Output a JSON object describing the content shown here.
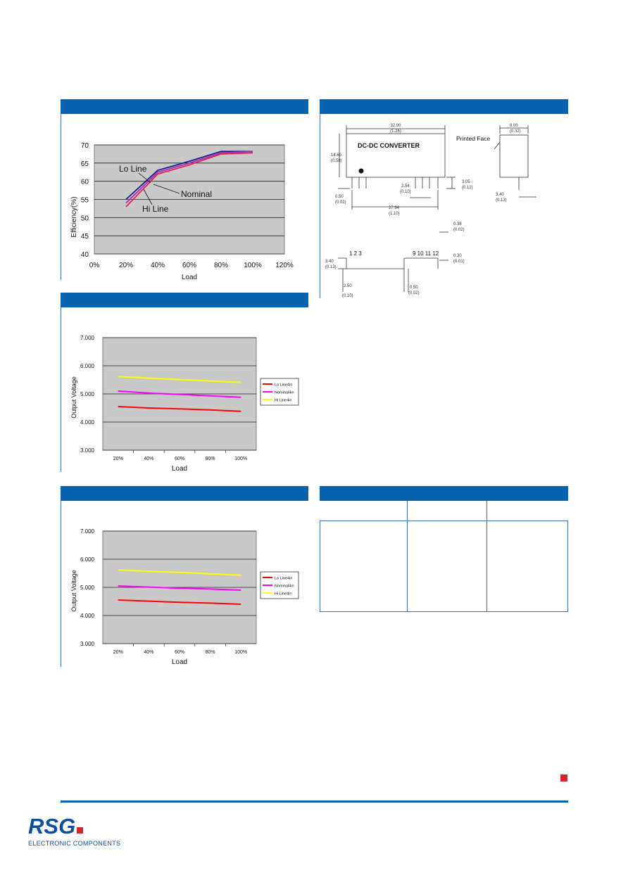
{
  "chart_data": [
    {
      "type": "line",
      "title": "",
      "xlabel": "Load",
      "ylabel": "Efficiency(%)",
      "x_ticks": [
        "0%",
        "20%",
        "40%",
        "60%",
        "80%",
        "100%",
        "120%"
      ],
      "y_ticks": [
        "40",
        "45",
        "50",
        "55",
        "60",
        "65",
        "70"
      ],
      "xlim": [
        0,
        120
      ],
      "ylim": [
        40,
        70
      ],
      "grid": true,
      "annotations": [
        "Lo Line",
        "Nominal",
        "Hi Line"
      ],
      "x": [
        20,
        40,
        60,
        80,
        100
      ],
      "series": [
        {
          "name": "Lo Line",
          "color": "#1a1a8c",
          "values": [
            55,
            63,
            65.5,
            68.2,
            68.2
          ]
        },
        {
          "name": "Nominal",
          "color": "#9b30c0",
          "values": [
            54,
            62.5,
            65,
            67.8,
            68.2
          ]
        },
        {
          "name": "Hi Line",
          "color": "#e8204a",
          "values": [
            53,
            62,
            64.5,
            67.5,
            67.8
          ]
        }
      ]
    },
    {
      "type": "line",
      "title": "",
      "xlabel": "Load",
      "ylabel": "Output Voltage",
      "categories": [
        "20%",
        "40%",
        "60%",
        "80%",
        "100%"
      ],
      "y_ticks": [
        "3.000",
        "4.000",
        "5.000",
        "6.000",
        "7.000"
      ],
      "ylim": [
        3,
        7
      ],
      "grid": true,
      "legend": "right",
      "series": [
        {
          "name": "Lo Line4in",
          "color": "#ff0000",
          "values": [
            4.55,
            4.5,
            4.47,
            4.43,
            4.38
          ]
        },
        {
          "name": "Nominal4in",
          "color": "#ff00ff",
          "values": [
            5.1,
            5.03,
            4.98,
            4.93,
            4.88
          ]
        },
        {
          "name": "Hi Line4in",
          "color": "#ffff00",
          "values": [
            5.62,
            5.56,
            5.51,
            5.46,
            5.41
          ]
        }
      ]
    },
    {
      "type": "line",
      "title": "",
      "xlabel": "Load",
      "ylabel": "Output Voltage",
      "categories": [
        "20%",
        "40%",
        "60%",
        "80%",
        "100%"
      ],
      "y_ticks": [
        "3.000",
        "4.000",
        "5.000",
        "6.000",
        "7.000"
      ],
      "ylim": [
        3,
        7
      ],
      "grid": true,
      "legend": "right",
      "series": [
        {
          "name": "Lo Line4in",
          "color": "#ff0000",
          "values": [
            4.55,
            4.51,
            4.47,
            4.44,
            4.4
          ]
        },
        {
          "name": "Nominal4in",
          "color": "#ff00ff",
          "values": [
            5.05,
            5.01,
            4.97,
            4.94,
            4.9
          ]
        },
        {
          "name": "Hi Line4in",
          "color": "#ffff00",
          "values": [
            5.62,
            5.57,
            5.53,
            5.48,
            5.43
          ]
        }
      ]
    }
  ],
  "diagram": {
    "title_label": "DC-DC CONVERTER",
    "printed_face": "Printed Face",
    "dims": {
      "length": "32.00",
      "length_in": "(1.26)",
      "height": "14.60",
      "height_in": "(0.58)",
      "width": "8.00",
      "width_in": "(0.32)",
      "pitch": "2.54",
      "pitch_in": "(0.10)",
      "pin_len": "3.05",
      "pin_len_in": "(0.12)",
      "standoff": "0.50",
      "standoff_in": "(0.02)",
      "span": "27.94",
      "span_in": "(1.10)",
      "side_pin": "3.40",
      "side_pin_in": "(0.13)",
      "pin_w": "0.38",
      "pin_w_in": "(0.02)",
      "thick": "0.30",
      "thick_in": "(0.01)",
      "bot_h": "3.40",
      "bot_h_in": "(0.13)",
      "bot_offset": "2.50",
      "bot_offset_in": "(0.10)",
      "bot_pin": "0.50",
      "bot_pin_in": "(0.02)"
    },
    "pins_left": "1  2  3",
    "pins_right": "9  10 11 12"
  },
  "brand": {
    "logo": "RSG",
    "tagline": "ELECTRONIC COMPONENTS"
  }
}
